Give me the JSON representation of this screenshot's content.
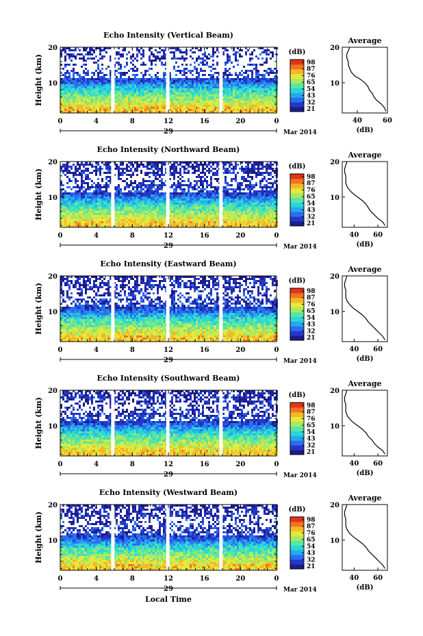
{
  "figure": {
    "xlabel": "Local Time",
    "date_label": "Mar 2014",
    "day_label": "29",
    "colorbar_unit": "(dB)",
    "profile_title": "Average",
    "profile_xlabel": "(dB)"
  },
  "colors": {
    "colormap": [
      "#1c1c8c",
      "#2438c8",
      "#2a6ef0",
      "#26a8ee",
      "#28d8d8",
      "#58e6a2",
      "#a6ea62",
      "#e6e83c",
      "#f6b824",
      "#f27420",
      "#e23418"
    ],
    "line": "#000000",
    "gap": "#ffffff"
  },
  "chart_data": [
    {
      "type": "heatmap",
      "title": "Echo Intensity (Vertical Beam)",
      "ylabel": "Height (km)",
      "x_ticks": [
        "0",
        "4",
        "8",
        "12",
        "16",
        "20",
        "0"
      ],
      "y_ticks": [
        "10",
        "20"
      ],
      "xlim": [
        0,
        24
      ],
      "ylim": [
        1.5,
        20
      ],
      "data_gaps_hours": [
        5.8,
        11.9,
        17.8
      ],
      "colorbar_ticks": [
        "98",
        "87",
        "76",
        "65",
        "54",
        "43",
        "32",
        "21"
      ],
      "profile": {
        "x_ticks": [
          "40",
          "60"
        ],
        "y_ticks": [
          "10",
          "20"
        ],
        "xlim": [
          30,
          60
        ],
        "height_km": [
          2,
          3,
          4,
          5,
          6,
          7,
          8,
          9,
          10,
          11,
          12,
          13,
          14,
          15,
          16,
          17,
          18,
          19,
          20
        ],
        "mean_db": [
          59,
          58,
          56,
          53,
          51,
          50,
          48,
          47,
          45,
          42,
          38,
          36,
          35,
          34,
          34,
          33,
          33,
          34,
          35
        ]
      }
    },
    {
      "type": "heatmap",
      "title": "Echo Intensity (Northward Beam)",
      "ylabel": "Height (km)",
      "x_ticks": [
        "0",
        "4",
        "8",
        "12",
        "16",
        "20",
        "0"
      ],
      "y_ticks": [
        "10",
        "20"
      ],
      "xlim": [
        0,
        24
      ],
      "ylim": [
        1.5,
        20
      ],
      "data_gaps_hours": [
        5.8,
        11.9,
        17.8
      ],
      "colorbar_ticks": [
        "98",
        "87",
        "76",
        "65",
        "54",
        "43",
        "32",
        "21"
      ],
      "profile": {
        "x_ticks": [
          "40",
          "60"
        ],
        "y_ticks": [
          "10",
          "20"
        ],
        "xlim": [
          30,
          68
        ],
        "height_km": [
          2,
          3,
          4,
          5,
          6,
          7,
          8,
          9,
          10,
          11,
          12,
          13,
          14,
          15,
          16,
          17,
          18,
          19,
          20
        ],
        "mean_db": [
          66,
          64,
          60,
          57,
          54,
          52,
          50,
          47,
          43,
          39,
          36,
          34,
          33,
          33,
          33,
          32,
          32,
          33,
          34
        ]
      }
    },
    {
      "type": "heatmap",
      "title": "Echo Intensity (Eastward Beam)",
      "ylabel": "Height (km)",
      "x_ticks": [
        "0",
        "4",
        "8",
        "12",
        "16",
        "20",
        "0"
      ],
      "y_ticks": [
        "10",
        "20"
      ],
      "xlim": [
        0,
        24
      ],
      "ylim": [
        1.5,
        20
      ],
      "data_gaps_hours": [
        5.8,
        11.9,
        17.8
      ],
      "colorbar_ticks": [
        "98",
        "87",
        "76",
        "65",
        "54",
        "43",
        "32",
        "21"
      ],
      "profile": {
        "x_ticks": [
          "40",
          "60"
        ],
        "y_ticks": [
          "10",
          "20"
        ],
        "xlim": [
          30,
          68
        ],
        "height_km": [
          2,
          3,
          4,
          5,
          6,
          7,
          8,
          9,
          10,
          11,
          12,
          13,
          14,
          15,
          16,
          17,
          18,
          19,
          20
        ],
        "mean_db": [
          66,
          64,
          61,
          58,
          55,
          52,
          50,
          47,
          43,
          39,
          36,
          34,
          33,
          33,
          33,
          32,
          32,
          33,
          34
        ]
      }
    },
    {
      "type": "heatmap",
      "title": "Echo Intensity (Southward Beam)",
      "ylabel": "Height (km)",
      "x_ticks": [
        "0",
        "4",
        "8",
        "12",
        "16",
        "20",
        "0"
      ],
      "y_ticks": [
        "10",
        "20"
      ],
      "xlim": [
        0,
        24
      ],
      "ylim": [
        1.5,
        20
      ],
      "data_gaps_hours": [
        5.8,
        11.9,
        17.8
      ],
      "colorbar_ticks": [
        "98",
        "87",
        "76",
        "65",
        "54",
        "43",
        "32",
        "21"
      ],
      "profile": {
        "x_ticks": [
          "40",
          "60"
        ],
        "y_ticks": [
          "10",
          "20"
        ],
        "xlim": [
          30,
          68
        ],
        "height_km": [
          2,
          3,
          4,
          5,
          6,
          7,
          8,
          9,
          10,
          11,
          12,
          13,
          14,
          15,
          16,
          17,
          18,
          19,
          20
        ],
        "mean_db": [
          66,
          64,
          60,
          57,
          55,
          52,
          50,
          47,
          43,
          39,
          36,
          34,
          33,
          33,
          33,
          32,
          32,
          33,
          34
        ]
      }
    },
    {
      "type": "heatmap",
      "title": "Echo Intensity (Westward Beam)",
      "ylabel": "Height (km)",
      "x_ticks": [
        "0",
        "4",
        "8",
        "12",
        "16",
        "20",
        "0"
      ],
      "y_ticks": [
        "10",
        "20"
      ],
      "xlim": [
        0,
        24
      ],
      "ylim": [
        1.5,
        20
      ],
      "data_gaps_hours": [
        5.8,
        11.9,
        17.8
      ],
      "colorbar_ticks": [
        "98",
        "87",
        "76",
        "65",
        "54",
        "43",
        "32",
        "21"
      ],
      "profile": {
        "x_ticks": [
          "40",
          "60"
        ],
        "y_ticks": [
          "10",
          "20"
        ],
        "xlim": [
          30,
          68
        ],
        "height_km": [
          2,
          3,
          4,
          5,
          6,
          7,
          8,
          9,
          10,
          11,
          12,
          13,
          14,
          15,
          16,
          17,
          18,
          19,
          20
        ],
        "mean_db": [
          66,
          64,
          61,
          58,
          55,
          52,
          50,
          47,
          43,
          39,
          36,
          34,
          33,
          33,
          33,
          32,
          32,
          33,
          34
        ]
      }
    }
  ]
}
